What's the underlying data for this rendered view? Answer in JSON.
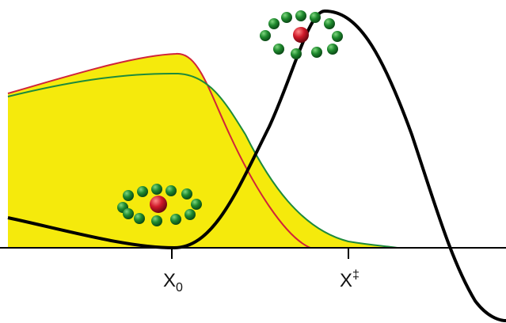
{
  "labels": {
    "x0": {
      "base": "X",
      "sub": "0"
    },
    "xts": {
      "base": "X",
      "sup": "‡"
    }
  }
}
